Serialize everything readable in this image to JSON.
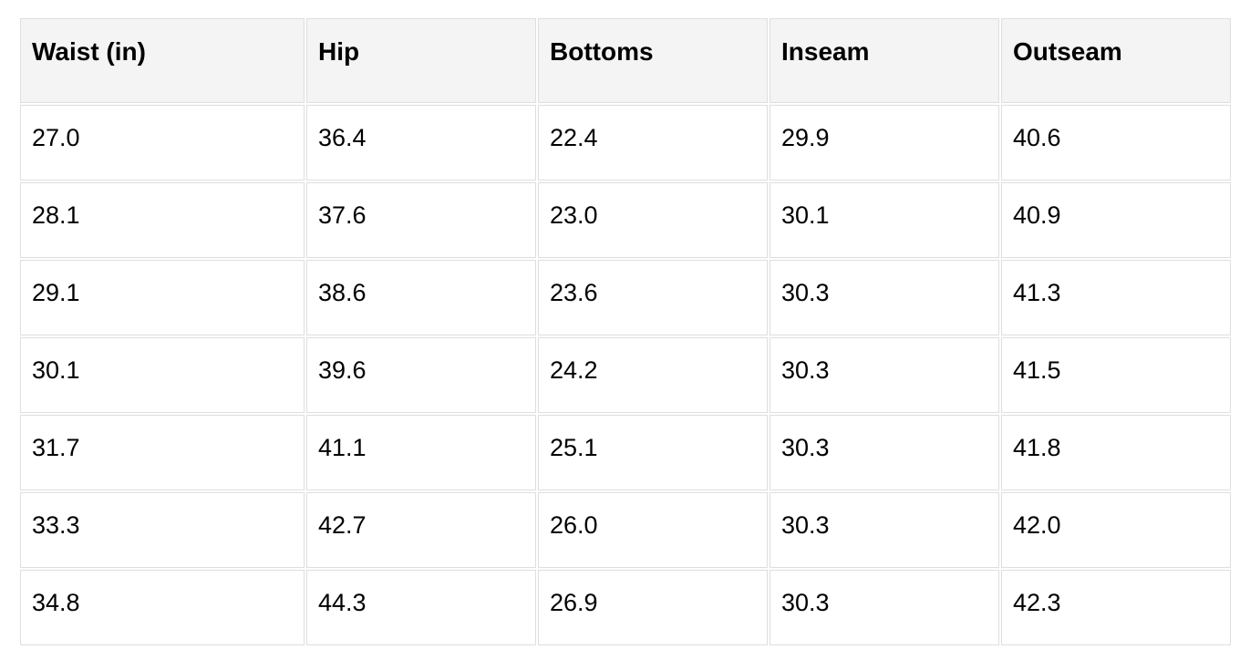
{
  "table": {
    "name": "size-chart",
    "columns": [
      "Waist (in)",
      "Hip",
      "Bottoms",
      "Inseam",
      "Outseam"
    ],
    "rows": [
      [
        "27.0",
        "36.4",
        "22.4",
        "29.9",
        "40.6"
      ],
      [
        "28.1",
        "37.6",
        "23.0",
        "30.1",
        "40.9"
      ],
      [
        "29.1",
        "38.6",
        "23.6",
        "30.3",
        "41.3"
      ],
      [
        "30.1",
        "39.6",
        "24.2",
        "30.3",
        "41.5"
      ],
      [
        "31.7",
        "41.1",
        "25.1",
        "30.3",
        "41.8"
      ],
      [
        "33.3",
        "42.7",
        "26.0",
        "30.3",
        "42.0"
      ],
      [
        "34.8",
        "44.3",
        "26.9",
        "30.3",
        "42.3"
      ]
    ],
    "colors": {
      "page_bg": "#ffffff",
      "header_bg": "#f4f4f4",
      "border": "#dedede",
      "text": "#000000"
    }
  }
}
